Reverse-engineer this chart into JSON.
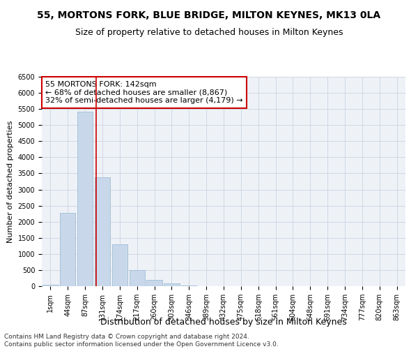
{
  "title1": "55, MORTONS FORK, BLUE BRIDGE, MILTON KEYNES, MK13 0LA",
  "title2": "Size of property relative to detached houses in Milton Keynes",
  "xlabel": "Distribution of detached houses by size in Milton Keynes",
  "ylabel": "Number of detached properties",
  "footnote": "Contains HM Land Registry data © Crown copyright and database right 2024.\nContains public sector information licensed under the Open Government Licence v3.0.",
  "bar_labels": [
    "1sqm",
    "44sqm",
    "87sqm",
    "131sqm",
    "174sqm",
    "217sqm",
    "260sqm",
    "303sqm",
    "346sqm",
    "389sqm",
    "432sqm",
    "475sqm",
    "518sqm",
    "561sqm",
    "604sqm",
    "648sqm",
    "691sqm",
    "734sqm",
    "777sqm",
    "820sqm",
    "863sqm"
  ],
  "bar_values": [
    50,
    2270,
    5420,
    3380,
    1300,
    490,
    185,
    80,
    30,
    0,
    0,
    0,
    0,
    0,
    0,
    0,
    0,
    0,
    0,
    0,
    0
  ],
  "bar_color": "#c8d8ea",
  "bar_edge_color": "#a0bcd4",
  "annotation_box_text": "55 MORTONS FORK: 142sqm\n← 68% of detached houses are smaller (8,867)\n32% of semi-detached houses are larger (4,179) →",
  "annotation_box_color": "#ffffff",
  "annotation_box_edge_color": "#cc0000",
  "vline_x": 2.62,
  "vline_color": "#cc0000",
  "ylim": [
    0,
    6500
  ],
  "yticks": [
    0,
    500,
    1000,
    1500,
    2000,
    2500,
    3000,
    3500,
    4000,
    4500,
    5000,
    5500,
    6000,
    6500
  ],
  "grid_color": "#d0d8e4",
  "bg_color": "#eef2f7",
  "title1_fontsize": 10,
  "title2_fontsize": 9,
  "xlabel_fontsize": 9,
  "ylabel_fontsize": 8,
  "tick_fontsize": 7,
  "annotation_fontsize": 8,
  "footnote_fontsize": 6.5
}
